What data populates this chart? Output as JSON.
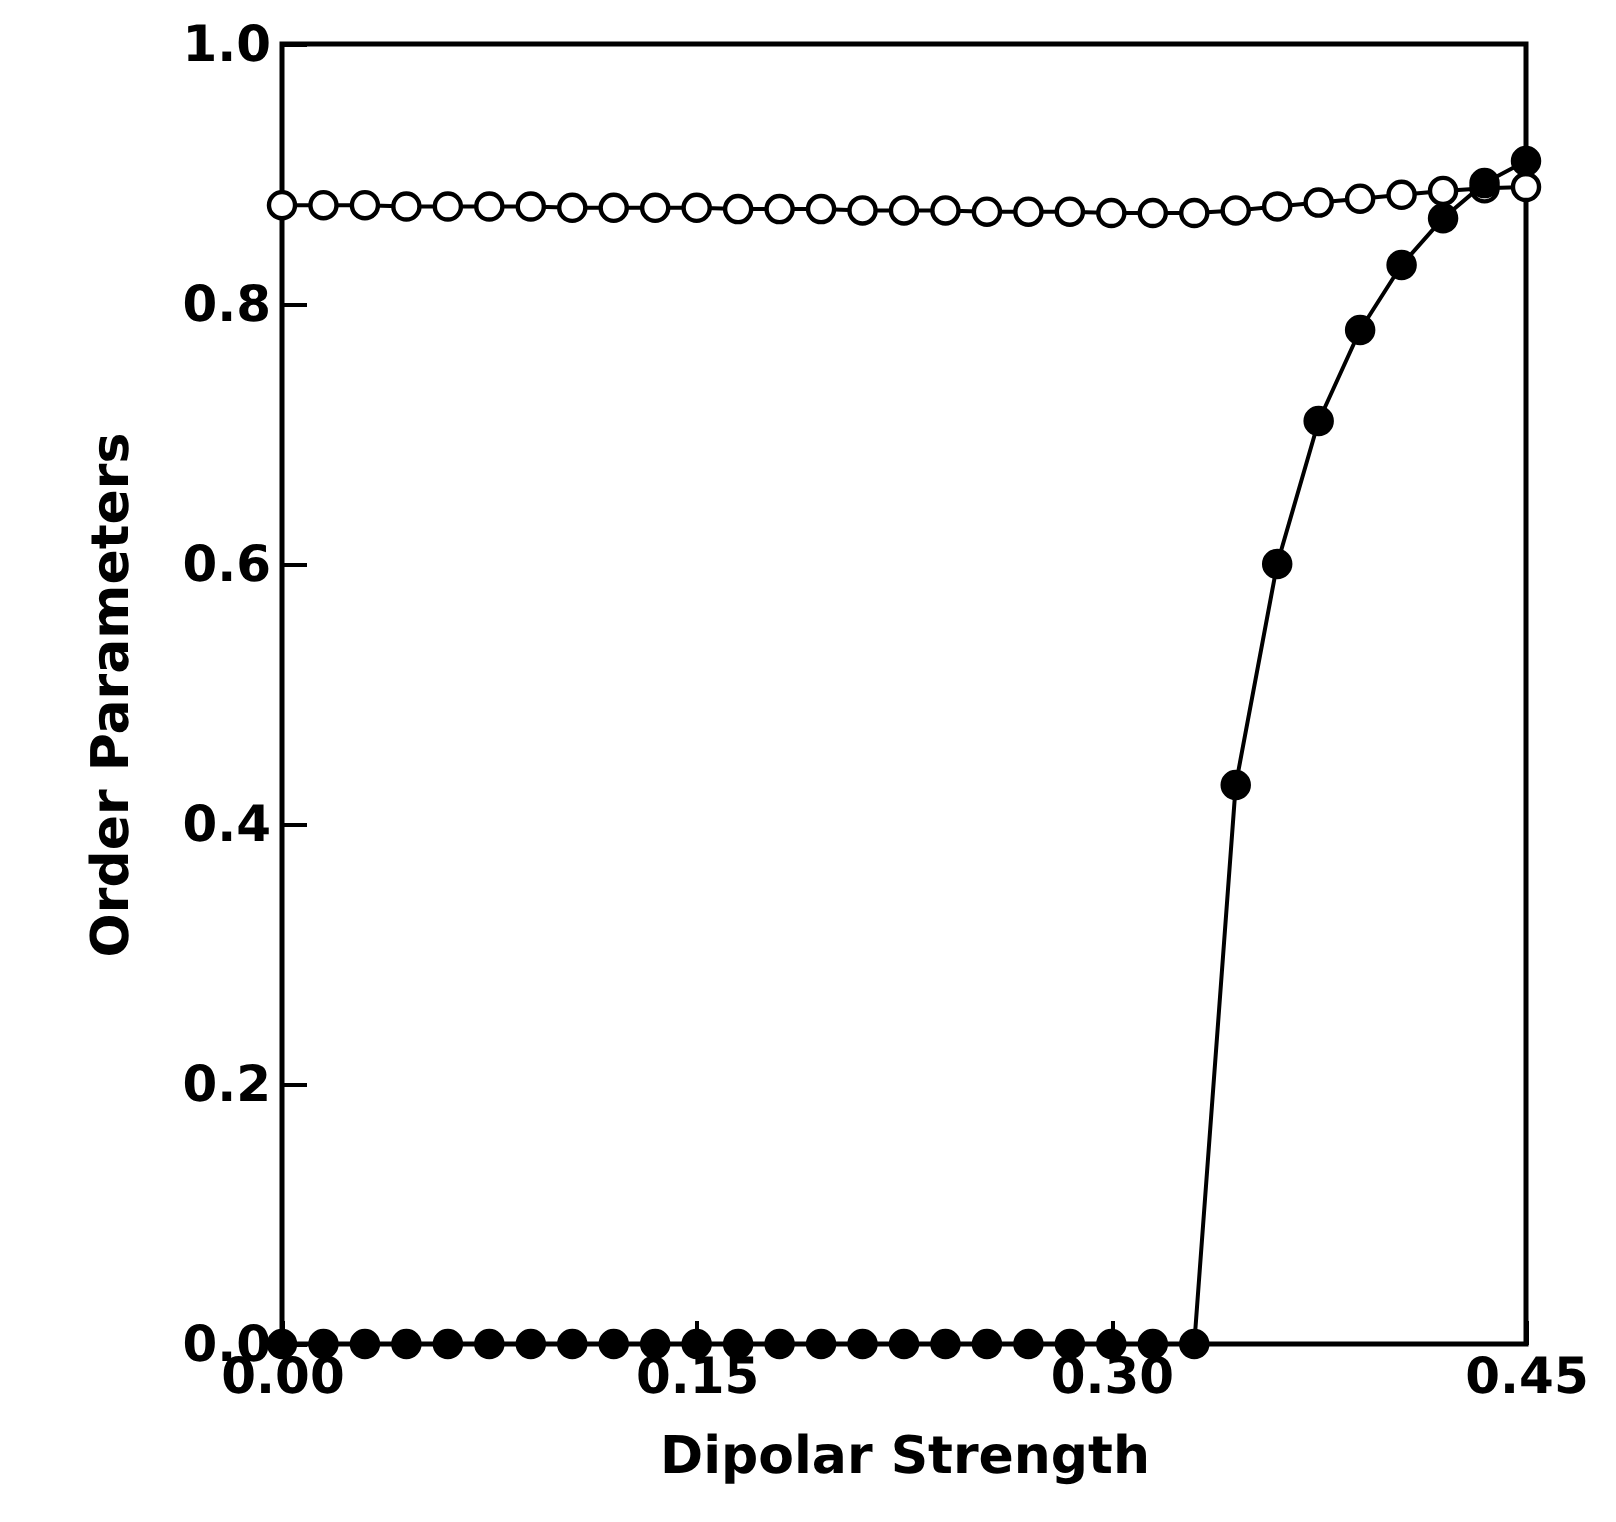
{
  "chart_data": {
    "type": "line",
    "xlabel": "Dipolar Strength",
    "ylabel": "Order Parameters",
    "xlim": [
      0,
      0.45
    ],
    "ylim": [
      0,
      1.0
    ],
    "xticks": [
      {
        "value": 0,
        "label": "0.00"
      },
      {
        "value": 0.15,
        "label": "0.15"
      },
      {
        "value": 0.3,
        "label": "0.30"
      },
      {
        "value": 0.45,
        "label": "0.45"
      }
    ],
    "yticks": [
      {
        "value": 0,
        "label": "0.0"
      },
      {
        "value": 0.2,
        "label": "0.2"
      },
      {
        "value": 0.4,
        "label": "0.4"
      },
      {
        "value": 0.6,
        "label": "0.6"
      },
      {
        "value": 0.8,
        "label": "0.8"
      },
      {
        "value": 1.0,
        "label": "1.0"
      }
    ],
    "grid": false,
    "marker": "circle",
    "line_style": "solid",
    "series": [
      {
        "color": "#ffffff",
        "x": [
          0,
          0.015,
          0.03,
          0.045,
          0.06,
          0.075,
          0.09,
          0.105,
          0.12,
          0.135,
          0.15,
          0.165,
          0.18,
          0.195,
          0.21,
          0.225,
          0.24,
          0.255,
          0.27,
          0.285,
          0.3,
          0.315,
          0.33,
          0.345,
          0.36,
          0.375,
          0.39,
          0.405,
          0.42,
          0.435,
          0.45
        ],
        "values": [
          0.876,
          0.876,
          0.876,
          0.875,
          0.875,
          0.875,
          0.875,
          0.874,
          0.874,
          0.874,
          0.874,
          0.873,
          0.873,
          0.873,
          0.872,
          0.872,
          0.872,
          0.871,
          0.871,
          0.871,
          0.87,
          0.87,
          0.87,
          0.872,
          0.875,
          0.878,
          0.881,
          0.884,
          0.887,
          0.889,
          0.89
        ]
      },
      {
        "color": "#000000",
        "x": [
          0,
          0.015,
          0.03,
          0.045,
          0.06,
          0.075,
          0.09,
          0.105,
          0.12,
          0.135,
          0.15,
          0.165,
          0.18,
          0.195,
          0.21,
          0.225,
          0.24,
          0.255,
          0.27,
          0.285,
          0.3,
          0.315,
          0.33,
          0.345,
          0.36,
          0.375,
          0.39,
          0.405,
          0.42,
          0.435,
          0.45
        ],
        "values": [
          0,
          0,
          0,
          0,
          0,
          0,
          0,
          0,
          0,
          0,
          0,
          0,
          0,
          0,
          0,
          0,
          0,
          0,
          0,
          0,
          0,
          0,
          0,
          0.43,
          0.6,
          0.71,
          0.78,
          0.83,
          0.866,
          0.893,
          0.91
        ]
      }
    ]
  }
}
